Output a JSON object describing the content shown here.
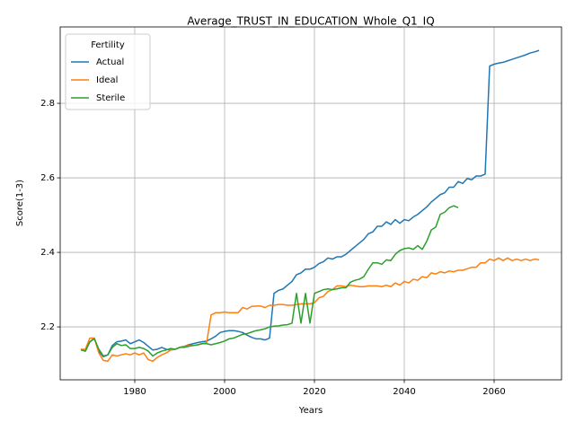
{
  "chart_data": {
    "type": "line",
    "title": "Average_TRUST_IN_EDUCATION_Whole_Q1_IQ",
    "xlabel": "Years",
    "ylabel": "Score(1-3)",
    "legend_title": "Fertility",
    "legend": "upper left",
    "grid": true,
    "xlim": [
      1963.4,
      2075
    ],
    "ylim": [
      2.058,
      3.005
    ],
    "xticks": [
      1980,
      2000,
      2020,
      2040,
      2060
    ],
    "yticks": [
      2.2,
      2.4,
      2.6,
      2.8
    ],
    "x": [
      1968,
      1969,
      1970,
      1971,
      1972,
      1973,
      1974,
      1975,
      1976,
      1977,
      1978,
      1979,
      1980,
      1981,
      1982,
      1983,
      1984,
      1985,
      1986,
      1987,
      1988,
      1989,
      1990,
      1991,
      1992,
      1993,
      1994,
      1995,
      1996,
      1997,
      1998,
      1999,
      2000,
      2001,
      2002,
      2003,
      2004,
      2005,
      2006,
      2007,
      2008,
      2009,
      2010,
      2011,
      2012,
      2013,
      2014,
      2015,
      2016,
      2017,
      2018,
      2019,
      2020,
      2021,
      2022,
      2023,
      2024,
      2025,
      2026,
      2027,
      2028,
      2029,
      2030,
      2031,
      2032,
      2033,
      2034,
      2035,
      2036,
      2037,
      2038,
      2039,
      2040,
      2041,
      2042,
      2043,
      2044,
      2045,
      2046,
      2047,
      2048,
      2049,
      2050,
      2051,
      2052,
      2053,
      2054,
      2055,
      2056,
      2057,
      2058,
      2059,
      2060,
      2061,
      2062,
      2063,
      2064,
      2065,
      2066,
      2067,
      2068,
      2069,
      2070
    ],
    "series": [
      {
        "name": "Actual",
        "color": "#1f77b4",
        "values": [
          2.14,
          2.135,
          2.16,
          2.17,
          2.135,
          2.12,
          2.125,
          2.15,
          2.16,
          2.162,
          2.165,
          2.155,
          2.16,
          2.165,
          2.158,
          2.148,
          2.138,
          2.14,
          2.145,
          2.14,
          2.138,
          2.14,
          2.145,
          2.148,
          2.152,
          2.155,
          2.158,
          2.16,
          2.162,
          2.168,
          2.175,
          2.185,
          2.188,
          2.19,
          2.19,
          2.188,
          2.185,
          2.178,
          2.172,
          2.168,
          2.168,
          2.165,
          2.17,
          2.29,
          2.298,
          2.302,
          2.312,
          2.322,
          2.34,
          2.345,
          2.355,
          2.355,
          2.36,
          2.37,
          2.375,
          2.385,
          2.382,
          2.388,
          2.388,
          2.395,
          2.405,
          2.415,
          2.425,
          2.435,
          2.45,
          2.455,
          2.47,
          2.47,
          2.482,
          2.475,
          2.488,
          2.478,
          2.488,
          2.485,
          2.495,
          2.502,
          2.512,
          2.522,
          2.535,
          2.545,
          2.555,
          2.56,
          2.575,
          2.575,
          2.59,
          2.585,
          2.598,
          2.595,
          2.605,
          2.605,
          2.61,
          2.9,
          2.905,
          2.908,
          2.91,
          2.914,
          2.918,
          2.922,
          2.926,
          2.93,
          2.935,
          2.938,
          2.942
        ]
      },
      {
        "name": "Ideal",
        "color": "#ff7f0e",
        "values": [
          2.14,
          2.14,
          2.17,
          2.17,
          2.13,
          2.11,
          2.108,
          2.125,
          2.122,
          2.125,
          2.128,
          2.125,
          2.13,
          2.125,
          2.13,
          2.112,
          2.108,
          2.118,
          2.125,
          2.13,
          2.138,
          2.14,
          2.145,
          2.148,
          2.15,
          2.15,
          2.152,
          2.155,
          2.158,
          2.232,
          2.238,
          2.238,
          2.24,
          2.238,
          2.238,
          2.238,
          2.252,
          2.248,
          2.255,
          2.256,
          2.256,
          2.252,
          2.258,
          2.258,
          2.26,
          2.26,
          2.258,
          2.258,
          2.26,
          2.262,
          2.262,
          2.262,
          2.265,
          2.278,
          2.282,
          2.295,
          2.3,
          2.31,
          2.31,
          2.308,
          2.312,
          2.31,
          2.308,
          2.308,
          2.31,
          2.31,
          2.31,
          2.308,
          2.312,
          2.308,
          2.318,
          2.312,
          2.322,
          2.318,
          2.328,
          2.325,
          2.335,
          2.332,
          2.345,
          2.342,
          2.348,
          2.345,
          2.35,
          2.348,
          2.352,
          2.352,
          2.356,
          2.36,
          2.36,
          2.372,
          2.372,
          2.382,
          2.378,
          2.385,
          2.378,
          2.385,
          2.378,
          2.382,
          2.378,
          2.382,
          2.378,
          2.382,
          2.38
        ]
      },
      {
        "name": "Sterile",
        "color": "#2ca02c",
        "values": [
          2.138,
          2.135,
          2.16,
          2.168,
          2.14,
          2.122,
          2.125,
          2.145,
          2.155,
          2.15,
          2.152,
          2.142,
          2.142,
          2.145,
          2.142,
          2.135,
          2.122,
          2.13,
          2.135,
          2.138,
          2.142,
          2.14,
          2.145,
          2.145,
          2.148,
          2.15,
          2.152,
          2.155,
          2.155,
          2.152,
          2.155,
          2.158,
          2.162,
          2.168,
          2.17,
          2.175,
          2.18,
          2.182,
          2.186,
          2.19,
          2.192,
          2.195,
          2.2,
          2.202,
          2.203,
          2.205,
          2.206,
          2.21,
          2.29,
          2.21,
          2.29,
          2.21,
          2.29,
          2.295,
          2.3,
          2.302,
          2.3,
          2.302,
          2.305,
          2.305,
          2.32,
          2.325,
          2.328,
          2.335,
          2.355,
          2.372,
          2.372,
          2.368,
          2.38,
          2.378,
          2.395,
          2.405,
          2.41,
          2.412,
          2.408,
          2.418,
          2.408,
          2.43,
          2.46,
          2.468,
          2.502,
          2.508,
          2.52,
          2.525,
          2.52,
          null,
          null,
          null,
          null,
          null,
          null,
          null,
          null,
          null,
          null,
          null,
          null,
          null,
          null,
          null,
          null,
          null,
          null
        ]
      }
    ]
  }
}
